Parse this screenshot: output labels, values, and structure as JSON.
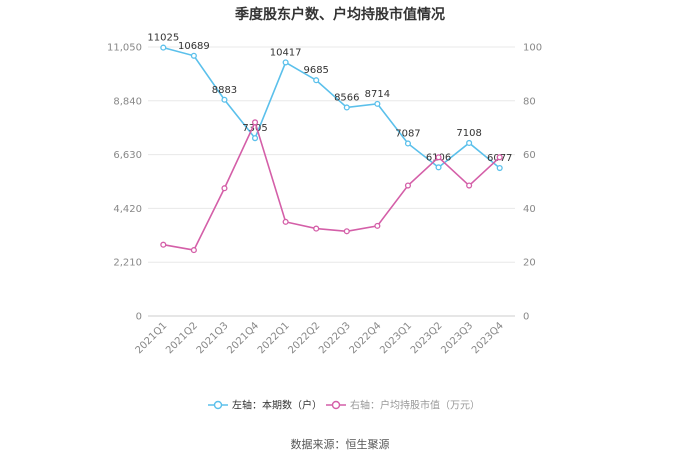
{
  "title": "季度股东户数、户均持股市值情况",
  "source": "数据来源：恒生聚源",
  "colors": {
    "left_series": "#5bc0eb",
    "right_series": "#d45fa8",
    "grid": "#e8e8e8"
  },
  "chart_data": {
    "type": "line",
    "categories": [
      "2021Q1",
      "2021Q2",
      "2021Q3",
      "2021Q4",
      "2022Q1",
      "2022Q2",
      "2022Q3",
      "2022Q4",
      "2023Q1",
      "2023Q2",
      "2023Q3",
      "2023Q4"
    ],
    "left_axis": {
      "ylim": [
        0,
        11050
      ],
      "ticks": [
        0,
        2210,
        4420,
        6630,
        8840,
        11050
      ],
      "tick_labels": [
        "0",
        "2,210",
        "4,420",
        "6,630",
        "8,840",
        "11,050"
      ]
    },
    "right_axis": {
      "ylim": [
        0,
        100
      ],
      "ticks": [
        0,
        20,
        40,
        60,
        80,
        100
      ],
      "tick_labels": [
        "0",
        "20",
        "40",
        "60",
        "80",
        "100"
      ]
    },
    "series": [
      {
        "name": "左轴：本期数（户）",
        "axis": "left",
        "values": [
          11025,
          10689,
          8883,
          7305,
          10417,
          9685,
          8566,
          8714,
          7087,
          6106,
          7108,
          6077
        ],
        "labels": [
          "11025",
          "10689",
          "8883",
          "7305",
          "10417",
          "9685",
          "8566",
          "8714",
          "7087",
          "6106",
          "7108",
          "6077"
        ]
      },
      {
        "name": "右轴：户均持股市值（万元）",
        "axis": "right",
        "values": [
          26.5,
          24.5,
          47.5,
          72,
          35,
          32.5,
          31.5,
          33.5,
          48.5,
          59,
          48.5,
          59
        ]
      }
    ],
    "grid": true,
    "legend": "bottom"
  }
}
